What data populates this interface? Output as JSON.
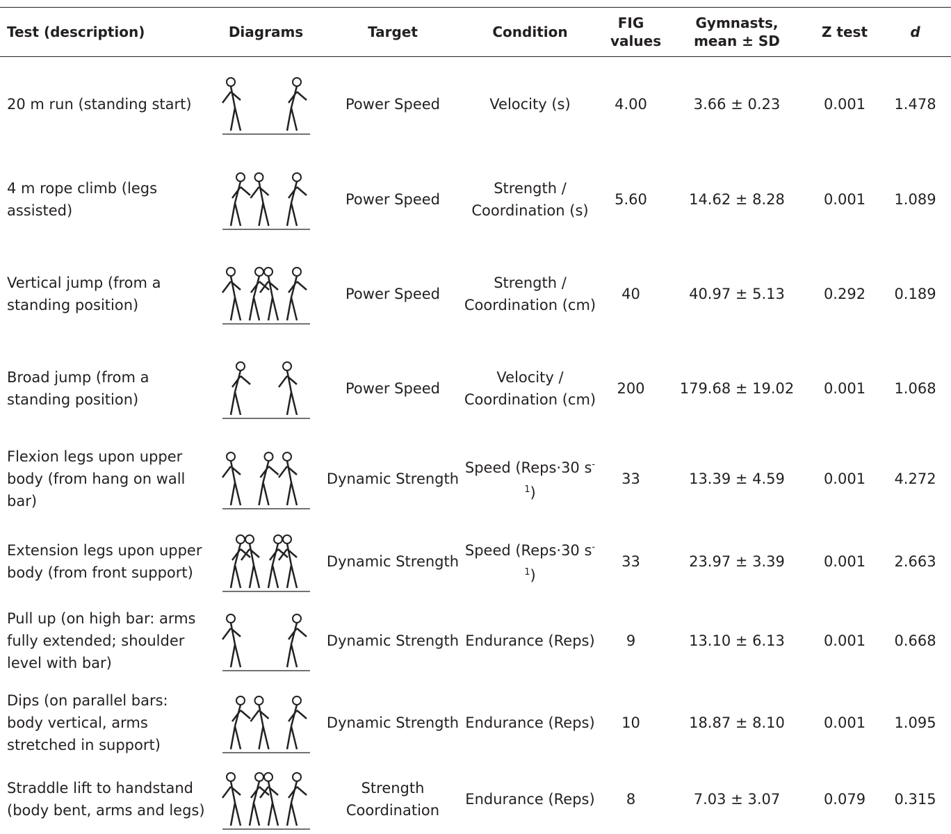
{
  "table": {
    "header": [
      "Test (description)",
      "Diagrams",
      "Target",
      "Condition",
      "FIG values",
      "Gymnasts, mean ± SD",
      "Z test",
      "d"
    ],
    "rows": [
      {
        "test": "20 m run (standing start)",
        "target": "Power Speed",
        "condition": [
          "Velocity (s)"
        ],
        "fig": "4.00",
        "gymnasts": "3.66 ± 0.23",
        "z": "0.001",
        "d": "1.478"
      },
      {
        "test": "4 m rope climb (legs assisted)",
        "target": "Power Speed",
        "condition": [
          "Strength / Coordination (s)"
        ],
        "fig": "5.60",
        "gymnasts": "14.62 ± 8.28",
        "z": "0.001",
        "d": "1.089"
      },
      {
        "test": "Vertical jump (from a standing position)",
        "target": "Power Speed",
        "condition": [
          "Strength / Coordination (cm)"
        ],
        "fig": "40",
        "gymnasts": "40.97 ± 5.13",
        "z": "0.292",
        "d": "0.189"
      },
      {
        "test": "Broad jump (from a standing position)",
        "target": "Power Speed",
        "condition": [
          "Velocity / Coordination (cm)"
        ],
        "fig": "200",
        "gymnasts": "179.68 ± 19.02",
        "z": "0.001",
        "d": "1.068"
      },
      {
        "test": "Flexion legs upon upper body (from hang on wall bar)",
        "target": "Dynamic Strength",
        "condition": [
          "Speed (Reps·30 s",
          "-1",
          ")"
        ],
        "fig": "33",
        "gymnasts": "13.39 ± 4.59",
        "z": "0.001",
        "d": "4.272"
      },
      {
        "test": "Extension legs upon upper body (from front support)",
        "target": "Dynamic Strength",
        "condition": [
          "Speed (Reps·30 s",
          "-1",
          ")"
        ],
        "fig": "33",
        "gymnasts": "23.97 ± 3.39",
        "z": "0.001",
        "d": "2.663"
      },
      {
        "test": "Pull up (on high bar: arms fully extended; shoulder level with bar)",
        "target": "Dynamic Strength",
        "condition": [
          "Endurance (Reps)"
        ],
        "fig": "9",
        "gymnasts": "13.10 ± 6.13",
        "z": "0.001",
        "d": "0.668"
      },
      {
        "test": "Dips (on parallel bars: body vertical, arms stretched in support)",
        "target": "Dynamic Strength",
        "condition": [
          "Endurance (Reps)"
        ],
        "fig": "10",
        "gymnasts": "18.87 ± 8.10",
        "z": "0.001",
        "d": "1.095"
      },
      {
        "test": "Straddle lift to handstand (body bent, arms and legs)",
        "target": "Strength Coordination",
        "condition": [
          "Endurance (Reps)"
        ],
        "fig": "8",
        "gymnasts": "7.03 ± 3.07",
        "z": "0.079",
        "d": "0.315"
      }
    ]
  }
}
